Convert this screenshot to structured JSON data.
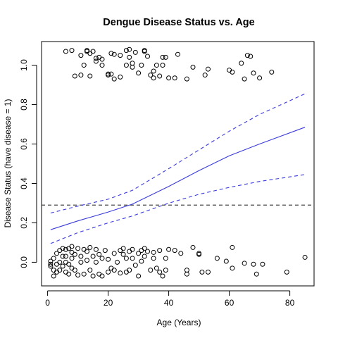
{
  "chart_data": {
    "type": "scatter",
    "title": "Dengue Disease Status vs. Age",
    "xlabel": "Age (Years)",
    "ylabel": "Disease Status (have disease = 1)",
    "xlim": [
      -2,
      88
    ],
    "ylim": [
      -0.12,
      1.12
    ],
    "x_ticks": [
      0,
      20,
      40,
      60,
      80
    ],
    "y_ticks": [
      0.0,
      0.2,
      0.4,
      0.6,
      0.8,
      1.0
    ],
    "x_tick_labels": [
      "0",
      "20",
      "40",
      "60",
      "80"
    ],
    "y_tick_labels": [
      "0.0",
      "0.2",
      "0.4",
      "0.6",
      "0.8",
      "1.0"
    ],
    "grid": false,
    "legend": "none",
    "reference_line": {
      "y": 0.29,
      "style": "dashed",
      "color": "#444444"
    },
    "colors": {
      "fit": "#3a3adc",
      "points": "#000000"
    },
    "fit_curve": {
      "x": [
        1,
        10,
        20,
        28,
        40,
        50,
        60,
        70,
        85
      ],
      "y": [
        0.165,
        0.21,
        0.255,
        0.295,
        0.385,
        0.465,
        0.54,
        0.6,
        0.685
      ]
    },
    "ci_upper": {
      "x": [
        1,
        10,
        20,
        28,
        40,
        50,
        60,
        70,
        85
      ],
      "y": [
        0.25,
        0.285,
        0.32,
        0.365,
        0.475,
        0.57,
        0.665,
        0.75,
        0.855
      ]
    },
    "ci_lower": {
      "x": [
        1,
        10,
        20,
        28,
        40,
        50,
        60,
        70,
        85
      ],
      "y": [
        0.095,
        0.15,
        0.2,
        0.235,
        0.3,
        0.345,
        0.38,
        0.41,
        0.445
      ]
    },
    "points_disease": [
      [
        6,
        1.07
      ],
      [
        8,
        1.075
      ],
      [
        9,
        0.945
      ],
      [
        11,
        1.05
      ],
      [
        11,
        0.95
      ],
      [
        12,
        1.0
      ],
      [
        13,
        1.075
      ],
      [
        13,
        1.07
      ],
      [
        14,
        1.06
      ],
      [
        14,
        0.945
      ],
      [
        15,
        1.07
      ],
      [
        16,
        1.02
      ],
      [
        16,
        1.035
      ],
      [
        17,
        1.04
      ],
      [
        18,
        1.0
      ],
      [
        18,
        1.03
      ],
      [
        20,
        0.95
      ],
      [
        20,
        0.955
      ],
      [
        21,
        0.955
      ],
      [
        21,
        1.06
      ],
      [
        22,
        0.93
      ],
      [
        22,
        1.055
      ],
      [
        24,
        1.05
      ],
      [
        24,
        0.94
      ],
      [
        26,
        1.075
      ],
      [
        26,
        1.0
      ],
      [
        27,
        1.08
      ],
      [
        27,
        1.04
      ],
      [
        28,
        0.99
      ],
      [
        28,
        1.01
      ],
      [
        29,
        1.065
      ],
      [
        30,
        0.96
      ],
      [
        31,
        1.0
      ],
      [
        32,
        1.07
      ],
      [
        32,
        1.075
      ],
      [
        33,
        1.045
      ],
      [
        34,
        0.95
      ],
      [
        35,
        0.97
      ],
      [
        35,
        0.935
      ],
      [
        36,
        1.0
      ],
      [
        37,
        0.945
      ],
      [
        38,
        1.0
      ],
      [
        38,
        1.04
      ],
      [
        39,
        1.04
      ],
      [
        40,
        0.935
      ],
      [
        42,
        0.935
      ],
      [
        43,
        1.055
      ],
      [
        46,
        0.93
      ],
      [
        48,
        0.99
      ],
      [
        52,
        0.95
      ],
      [
        53,
        0.98
      ],
      [
        60,
        0.975
      ],
      [
        61,
        0.965
      ],
      [
        64,
        1.01
      ],
      [
        65,
        0.93
      ],
      [
        66,
        1.05
      ],
      [
        67,
        1.045
      ],
      [
        68,
        0.96
      ],
      [
        70,
        0.935
      ],
      [
        74,
        0.965
      ]
    ],
    "points_no_disease": [
      [
        1,
        -0.01
      ],
      [
        1,
        -0.02
      ],
      [
        1,
        0.005
      ],
      [
        2,
        0.02
      ],
      [
        2,
        -0.04
      ],
      [
        2,
        -0.07
      ],
      [
        3,
        0.045
      ],
      [
        3,
        -0.05
      ],
      [
        3,
        -0.01
      ],
      [
        4,
        0.06
      ],
      [
        4,
        0.0
      ],
      [
        4,
        -0.04
      ],
      [
        5,
        0.07
      ],
      [
        5,
        0.03
      ],
      [
        5,
        -0.02
      ],
      [
        6,
        0.065
      ],
      [
        6,
        0.03
      ],
      [
        6,
        -0.05
      ],
      [
        6,
        0.0
      ],
      [
        7,
        0.07
      ],
      [
        7,
        -0.01
      ],
      [
        7,
        -0.06
      ],
      [
        8,
        0.05
      ],
      [
        8,
        0.02
      ],
      [
        8,
        -0.03
      ],
      [
        8,
        0.08
      ],
      [
        9,
        0.04
      ],
      [
        9,
        -0.04
      ],
      [
        10,
        0.07
      ],
      [
        10,
        -0.065
      ],
      [
        11,
        0.03
      ],
      [
        11,
        0.0
      ],
      [
        12,
        0.065
      ],
      [
        12,
        -0.06
      ],
      [
        13,
        0.055
      ],
      [
        13,
        0.01
      ],
      [
        14,
        0.075
      ],
      [
        14,
        -0.04
      ],
      [
        15,
        0.03
      ],
      [
        15,
        -0.07
      ],
      [
        16,
        0.065
      ],
      [
        16,
        0.0
      ],
      [
        17,
        0.04
      ],
      [
        17,
        -0.06
      ],
      [
        18,
        0.02
      ],
      [
        18,
        -0.07
      ],
      [
        19,
        0.06
      ],
      [
        20,
        0.015
      ],
      [
        20,
        -0.05
      ],
      [
        21,
        -0.03
      ],
      [
        22,
        0.045
      ],
      [
        22,
        -0.04
      ],
      [
        23,
        0.0
      ],
      [
        24,
        0.06
      ],
      [
        24,
        -0.055
      ],
      [
        25,
        0.04
      ],
      [
        25,
        0.07
      ],
      [
        26,
        -0.05
      ],
      [
        26,
        0.02
      ],
      [
        27,
        0.055
      ],
      [
        27,
        -0.04
      ],
      [
        28,
        0.02
      ],
      [
        28,
        0.065
      ],
      [
        29,
        -0.015
      ],
      [
        30,
        0.045
      ],
      [
        30,
        -0.07
      ],
      [
        31,
        0.06
      ],
      [
        31,
        0.005
      ],
      [
        32,
        0.07
      ],
      [
        32,
        0.03
      ],
      [
        33,
        0.055
      ],
      [
        34,
        -0.04
      ],
      [
        35,
        0.05
      ],
      [
        35,
        0.02
      ],
      [
        36,
        -0.03
      ],
      [
        37,
        0.06
      ],
      [
        37,
        -0.05
      ],
      [
        38,
        -0.07
      ],
      [
        39,
        0.02
      ],
      [
        39,
        -0.04
      ],
      [
        40,
        0.065
      ],
      [
        42,
        0.06
      ],
      [
        44,
        0.045
      ],
      [
        46,
        -0.06
      ],
      [
        46,
        -0.04
      ],
      [
        48,
        0.075
      ],
      [
        50,
        0.045
      ],
      [
        50,
        0.04
      ],
      [
        51,
        -0.05
      ],
      [
        53,
        -0.05
      ],
      [
        56,
        0.02
      ],
      [
        59,
        0.005
      ],
      [
        61,
        0.075
      ],
      [
        61,
        -0.03
      ],
      [
        65,
        -0.005
      ],
      [
        68,
        -0.01
      ],
      [
        69,
        -0.06
      ],
      [
        71,
        -0.01
      ],
      [
        79,
        -0.05
      ],
      [
        85,
        0.025
      ]
    ]
  }
}
